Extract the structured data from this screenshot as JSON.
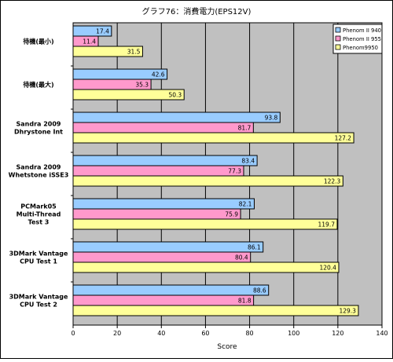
{
  "chart_data": {
    "type": "bar",
    "orientation": "horizontal",
    "title": "グラフ76：消費電力(EPS12V)",
    "xlabel": "Score",
    "ylabel": "",
    "xlim": [
      0,
      140
    ],
    "x_ticks": [
      0,
      20,
      40,
      60,
      80,
      100,
      120,
      140
    ],
    "grid": true,
    "legend_position": "top-right",
    "categories": [
      "待機(最小)",
      "待機(最大)",
      "Sandra 2009\nDhrystone Int",
      "Sandra 2009\nWhetstone iSSE3",
      "PCMark05\nMulti-Thread\nTest 3",
      "3DMark Vantage\nCPU Test 1",
      "3DMark Vantage\nCPU Test 2"
    ],
    "series": [
      {
        "name": "Phenom II 940",
        "color": "#99ccff",
        "values": [
          17.4,
          42.6,
          93.8,
          83.4,
          82.1,
          86.1,
          88.6
        ]
      },
      {
        "name": "Phenom II 955",
        "color": "#ff99cc",
        "values": [
          11.4,
          35.3,
          81.7,
          77.3,
          75.9,
          80.4,
          81.8
        ]
      },
      {
        "name": "Phenom9950",
        "color": "#ffff99",
        "values": [
          31.5,
          50.3,
          127.2,
          122.3,
          119.7,
          120.4,
          129.3
        ]
      }
    ],
    "plot_background": "#c0c0c0"
  }
}
